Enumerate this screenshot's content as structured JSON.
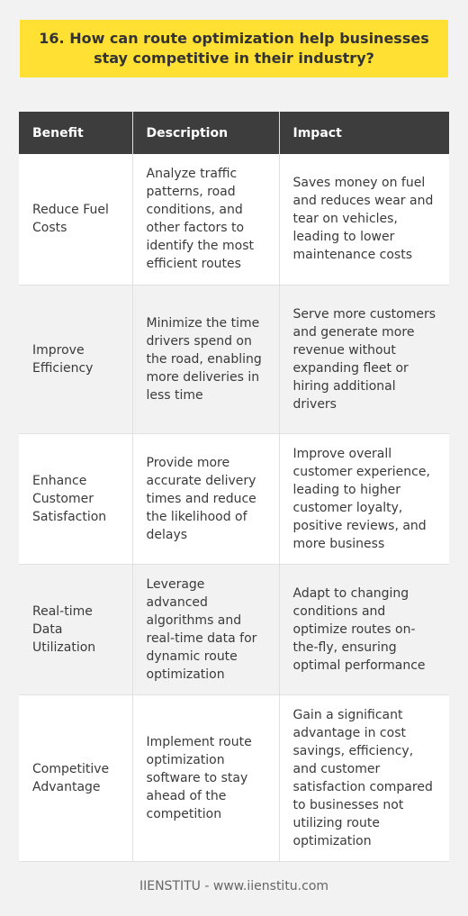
{
  "title": "16. How can route optimization help businesses stay competitive in their industry?",
  "table": {
    "headers": [
      "Benefit",
      "Description",
      "Impact"
    ],
    "rows": [
      {
        "benefit": "Reduce Fuel Costs",
        "description": "Analyze traffic patterns, road conditions, and other factors to identify the most efficient routes",
        "impact": "Saves money on fuel and reduces wear and tear on vehicles, leading to lower maintenance costs"
      },
      {
        "benefit": "Improve Efficiency",
        "description": "Minimize the time drivers spend on the road, enabling more deliveries in less time",
        "impact": "Serve more customers and generate more revenue without expanding fleet or hiring additional drivers"
      },
      {
        "benefit": "Enhance Customer Satisfaction",
        "description": "Provide more accurate delivery times and reduce the likelihood of delays",
        "impact": "Improve overall customer experience, leading to higher customer loyalty, positive reviews, and more business"
      },
      {
        "benefit": "Real-time Data Utilization",
        "description": "Leverage advanced algorithms and real-time data for dynamic route optimization",
        "impact": "Adapt to changing conditions and optimize routes on-the-fly, ensuring optimal performance"
      },
      {
        "benefit": "Competitive Advantage",
        "description": "Implement route optimization software to stay ahead of the competition",
        "impact": "Gain a significant advantage in cost savings, efficiency, and customer satisfaction compared to businesses not utilizing route optimization"
      }
    ]
  },
  "footer": "IIENSTITU - www.iienstitu.com",
  "colors": {
    "title_bg": "#ffe033",
    "header_bg": "#3d3d3d",
    "row_alt_bg": "#f2f2f2"
  }
}
